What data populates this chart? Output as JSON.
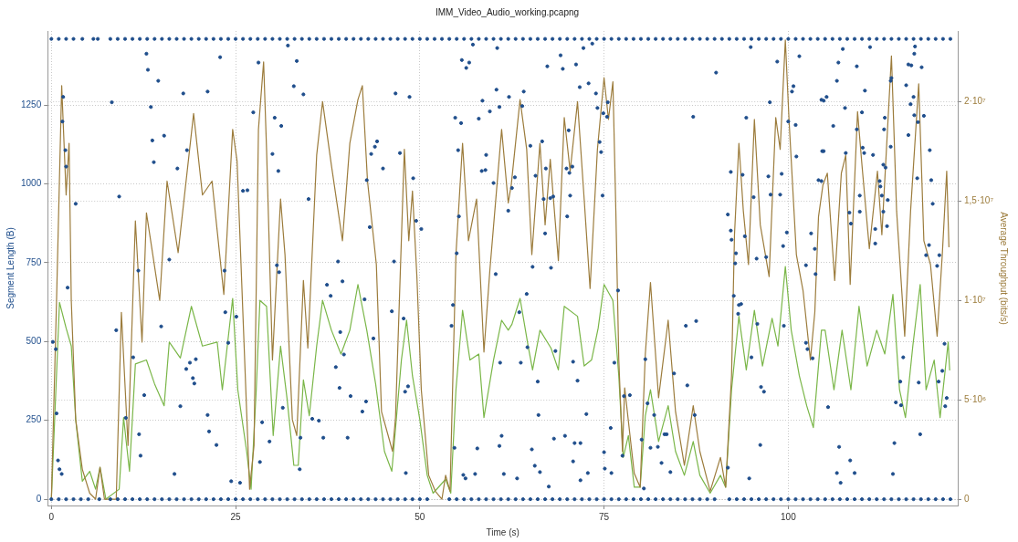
{
  "chart_data": {
    "type": "line",
    "title": "IMM_Video_Audio_working.pcapng",
    "xlabel": "Time (s)",
    "ylabel": "Segment Length (B)",
    "y2label": "Average Throughput (bits/s)",
    "xlim": [
      -0.5,
      123
    ],
    "xticks": [
      0,
      25,
      50,
      75,
      100
    ],
    "ylim": [
      -20,
      1485
    ],
    "yticks": [
      0,
      250,
      500,
      750,
      1000,
      1250
    ],
    "y2lim": [
      -320000,
      23550000
    ],
    "y2ticks": [
      0,
      {
        "value": 5000000,
        "label": "5·10⁶"
      },
      {
        "value": 10000000,
        "label": "1·10⁷"
      },
      {
        "value": 15000000,
        "label": "1,5·10⁷"
      },
      {
        "value": 20000000,
        "label": "2·10⁷"
      }
    ],
    "grid": true,
    "series": [
      {
        "type": "scatter",
        "marker": "circle",
        "color": "#1f4e8c",
        "x": [
          1.6,
          1.5,
          1.9,
          2.0,
          3.3,
          2.2,
          0.2,
          0.6,
          0.7,
          0.9,
          1.1,
          1.4,
          8.2,
          9.2,
          8.8,
          10.1,
          12.9,
          13.1,
          14.5,
          13.5,
          13.7,
          13.9,
          15.3,
          11.8,
          11.1,
          12.6,
          11.9,
          12.1,
          16.7,
          17.9,
          18.4,
          17.1,
          16.0,
          14.9,
          17.5,
          18.3,
          18.8,
          19.6,
          19.2,
          19.4,
          22.9,
          21.2,
          28.1,
          32.1,
          33.3,
          32.9,
          34.2,
          27.4,
          30.3,
          31.2,
          30.0,
          30.8,
          26.0,
          26.6,
          34.9,
          23.5,
          30.6,
          30.9,
          23.6,
          25.1,
          24.0,
          21.2,
          21.4,
          22.4,
          28.6,
          31.4,
          29.6,
          28.3,
          24.4,
          25.6,
          33.7,
          33.8,
          35.4,
          36.3,
          36.9,
          40.2,
          37.4,
          37.9,
          38.9,
          39.5,
          39.2,
          39.7,
          38.6,
          39.1,
          40.6,
          46.7,
          48.6,
          54.8,
          55.6,
          55.7,
          56.3,
          56.7,
          57.2,
          60.5,
          58.0,
          58.5,
          59.5,
          60.4,
          60.8,
          62.1,
          55.2,
          59.0,
          58.4,
          58.9,
          60.0,
          47.3,
          49.1,
          45.0,
          44.2,
          43.9,
          43.4,
          42.8,
          43.2,
          46.5,
          49.5,
          50.2,
          55.3,
          55.0,
          60.3,
          62.0,
          42.5,
          43.7,
          46.2,
          47.8,
          54.5,
          54.3,
          60.9,
          42.2,
          42.7,
          48.0,
          48.4,
          54.7,
          57.8,
          61.1,
          60.8,
          48.1,
          55.9,
          56.2,
          57.5,
          61.4,
          72.2,
          73.4,
          69.1,
          67.3,
          69.4,
          71.2,
          71.7,
          72.9,
          73.9,
          64.1,
          63.9,
          74.1,
          75.5,
          75.4,
          74.9,
          70.2,
          66.6,
          65.0,
          74.4,
          74.6,
          62.9,
          62.5,
          65.7,
          67.1,
          69.9,
          70.7,
          70.3,
          66.8,
          67.7,
          68.1,
          70.4,
          74.8,
          70.0,
          67.0,
          65.3,
          67.8,
          76.9,
          64.5,
          63.5,
          64.6,
          68.4,
          63.7,
          70.8,
          66.0,
          71.4,
          76.4,
          77.7,
          78.5,
          66.1,
          72.6,
          75.9,
          68.2,
          69.7,
          71.0,
          71.8,
          65.2,
          70.8,
          75.0,
          65.6,
          66.3,
          72.8,
          75.1,
          76.0,
          71.8,
          63.2,
          67.5,
          77.5,
          80.1,
          80.6,
          80.9,
          81.8,
          82.8,
          81.3,
          82.3,
          83.2,
          80.4,
          94.9,
          98.5,
          101.5,
          90.2,
          87.1,
          94.3,
          97.5,
          100.5,
          100.7,
          100.0,
          101.0,
          104.5,
          92.2,
          93.8,
          97.3,
          99.1,
          101.1,
          104.6,
          104.1,
          91.8,
          92.2,
          95.3,
          97.6,
          98.9,
          99.8,
          103.1,
          92.3,
          92.9,
          92.8,
          94.1,
          95.7,
          97.0,
          99.3,
          102.4,
          103.6,
          103.7,
          92.6,
          93.3,
          93.6,
          93.2,
          95.8,
          99.4,
          86.1,
          87.5,
          84.5,
          86.3,
          95.0,
          96.3,
          96.7,
          102.4,
          102.6,
          103.3,
          87.3,
          83.5,
          96.2,
          84.0,
          91.8,
          94.7,
          106.8,
          107.4,
          111.1,
          109.3,
          106.6,
          104.8,
          105.2,
          107.7,
          110.4,
          106.1,
          104.8,
          109.3,
          110.0,
          107.8,
          110.1,
          110.3,
          111.5,
          113.1,
          113.0,
          114.0,
          113.9,
          113.9,
          112.9,
          113.2,
          112.4,
          112.5,
          112.7,
          113.5,
          112.9,
          113.4,
          111.8,
          111.8,
          109.7,
          109.7,
          108.3,
          108.5,
          104.5,
          116.0,
          116.3,
          116.7,
          117.2,
          117.1,
          118.1,
          117.0,
          116.6,
          117.1,
          116.3,
          117.6,
          118.4,
          117.5,
          119.2,
          119.4,
          119.6,
          119.1,
          118.7,
          120.2,
          120.5,
          115.6,
          115.2,
          114.6,
          115.3,
          117.7,
          120.4,
          120.9,
          121.2,
          121.5,
          121.3,
          117.9,
          114.4,
          114.2,
          105.4,
          106.9,
          108.4,
          106.6,
          109.0,
          107.1
        ],
        "values": [
          1276,
          1198,
          1107,
          1055,
          937,
          671,
          499,
          476,
          272,
          123,
          95,
          80,
          1259,
          960,
          536,
          258,
          1413,
          1362,
          1327,
          1244,
          1138,
          1069,
          1153,
          725,
          450,
          330,
          206,
          138,
          80,
          1287,
          1107,
          1049,
          760,
          548,
          295,
          413,
          433,
          444,
          384,
          367,
          1402,
          1293,
          1385,
          1439,
          1390,
          1310,
          1284,
          1227,
          1210,
          1184,
          1095,
          1041,
          978,
          980,
          952,
          725,
          742,
          720,
          593,
          579,
          496,
          267,
          215,
          172,
          244,
          290,
          183,
          118,
          57,
          52,
          95,
          195,
          255,
          249,
          195,
          195,
          680,
          645,
          754,
          691,
          530,
          459,
          419,
          353,
          327,
          1287,
          1276,
          1210,
          1193,
          1393,
          1368,
          1385,
          1442,
          1431,
          1207,
          1264,
          1230,
          1299,
          1244,
          1276,
          1107,
          1092,
          1041,
          1044,
          1003,
          1098,
          1018,
          1049,
          1135,
          1118,
          1095,
          1012,
          863,
          754,
          883,
          857,
          897,
          780,
          714,
          915,
          634,
          510,
          596,
          573,
          616,
          550,
          433,
          278,
          310,
          341,
          358,
          163,
          161,
          201,
          169,
          83,
          77,
          66,
          80,
          80,
          1431,
          1445,
          1408,
          1373,
          1365,
          1379,
          1307,
          1319,
          1287,
          1293,
          1247,
          1241,
          1259,
          1213,
          1224,
          1170,
          1135,
          1121,
          1133,
          1101,
          1021,
          987,
          1026,
          1049,
          1049,
          1055,
          1035,
          952,
          955,
          960,
          963,
          963,
          897,
          843,
          737,
          734,
          662,
          651,
          593,
          482,
          470,
          433,
          436,
          373,
          376,
          433,
          327,
          330,
          267,
          270,
          226,
          192,
          201,
          178,
          178,
          158,
          120,
          149,
          106,
          86,
          83,
          97,
          83,
          60,
          66,
          40,
          138,
          189,
          444,
          304,
          267,
          115,
          163,
          166,
          206,
          34,
          1434,
          1388,
          1405,
          1353,
          1213,
          1210,
          1259,
          1293,
          1310,
          1198,
          1187,
          1267,
          1038,
          1029,
          1024,
          1032,
          1087,
          1104,
          1012,
          903,
          852,
          958,
          966,
          966,
          846,
          843,
          823,
          780,
          748,
          834,
          763,
          768,
          803,
          742,
          794,
          714,
          645,
          616,
          619,
          588,
          556,
          550,
          550,
          565,
          399,
          361,
          450,
          356,
          341,
          496,
          476,
          447,
          267,
          206,
          172,
          86,
          100,
          66,
          1385,
          1428,
          1434,
          1373,
          1327,
          1264,
          1276,
          1241,
          1296,
          1184,
          1104,
          1173,
          1227,
          1098,
          1115,
          1098,
          1092,
          1210,
          1173,
          1336,
          1327,
          1118,
          1061,
          1052,
          1009,
          992,
          963,
          949,
          912,
          866,
          857,
          811,
          963,
          912,
          909,
          874,
          1009,
          1313,
          1379,
          1376,
          1436,
          1413,
          1370,
          1276,
          1253,
          1218,
          1155,
          1196,
          1216,
          1018,
          1107,
          1012,
          937,
          806,
          774,
          740,
          774,
          450,
          373,
          307,
          298,
          370,
          373,
          407,
          493,
          321,
          295,
          206,
          178,
          80,
          292,
          166,
          123,
          83,
          83,
          52
        ]
      },
      {
        "type": "scatter",
        "marker": "circle",
        "color": "#1f4e8c",
        "x": [
          0,
          1,
          2,
          3,
          4.2,
          5.7,
          6.3,
          8,
          9,
          10,
          11,
          12,
          13,
          14,
          15,
          16,
          17,
          18,
          19,
          20,
          21,
          22,
          23,
          24,
          25,
          26,
          27,
          28,
          29,
          30,
          31,
          32,
          33,
          34,
          35,
          36,
          37,
          38,
          39,
          40,
          41,
          42,
          43,
          44,
          45,
          46,
          47,
          48,
          49,
          50,
          51,
          52,
          53,
          54,
          55,
          56,
          57,
          58,
          59,
          60,
          61,
          62,
          63,
          64,
          65,
          66,
          67,
          68,
          69,
          70,
          71,
          72,
          73,
          74,
          75,
          76,
          77,
          78,
          79,
          80,
          81,
          82,
          83,
          84,
          85,
          86,
          87,
          88,
          89,
          90,
          91,
          92,
          93,
          94,
          95,
          96,
          97,
          98,
          99,
          100,
          101,
          102,
          103,
          104,
          105,
          106,
          107,
          108,
          109,
          110,
          111,
          112,
          113,
          114,
          115,
          116,
          117,
          118,
          119,
          120,
          121,
          122
        ],
        "values": [
          1460,
          1460,
          1460,
          1460,
          1460,
          1460,
          1460,
          1460,
          1460,
          1460,
          1460,
          1460,
          1460,
          1460,
          1460,
          1460,
          1460,
          1460,
          1460,
          1460,
          1460,
          1460,
          1460,
          1460,
          1460,
          1460,
          1460,
          1460,
          1460,
          1460,
          1460,
          1460,
          1460,
          1460,
          1460,
          1460,
          1460,
          1460,
          1460,
          1460,
          1460,
          1460,
          1460,
          1460,
          1460,
          1460,
          1460,
          1460,
          1460,
          1460,
          1460,
          1460,
          1460,
          1460,
          1460,
          1460,
          1460,
          1460,
          1460,
          1460,
          1460,
          1460,
          1460,
          1460,
          1460,
          1460,
          1460,
          1460,
          1460,
          1460,
          1460,
          1460,
          1460,
          1460,
          1460,
          1460,
          1460,
          1460,
          1460,
          1460,
          1460,
          1460,
          1460,
          1460,
          1460,
          1460,
          1460,
          1460,
          1460,
          1460,
          1460,
          1460,
          1460,
          1460,
          1460,
          1460,
          1460,
          1460,
          1460,
          1460,
          1460,
          1460,
          1460,
          1460,
          1460,
          1460,
          1460,
          1460,
          1460,
          1460,
          1460,
          1460,
          1460,
          1460,
          1460,
          1460,
          1460,
          1460,
          1460,
          1460,
          1460,
          1460
        ]
      },
      {
        "type": "scatter",
        "marker": "circle",
        "color": "#1f4e8c",
        "x": [
          0,
          1,
          2,
          3,
          4,
          5,
          6.5,
          8,
          9,
          10,
          11,
          12,
          13,
          14,
          15,
          16,
          17,
          18,
          19,
          20,
          21,
          22,
          23,
          24,
          25,
          26,
          27,
          28,
          29,
          30,
          31,
          32,
          33,
          34,
          35,
          36,
          37,
          38,
          39,
          40,
          41,
          42,
          43,
          44,
          45,
          46,
          47,
          48,
          49,
          50,
          51,
          54,
          55,
          56,
          57,
          58,
          59,
          60,
          61,
          62,
          63,
          64,
          65,
          66,
          67,
          68,
          69,
          70,
          71,
          72,
          73,
          74,
          75,
          76,
          77,
          78,
          79,
          80,
          81,
          82,
          83,
          84,
          85,
          86,
          87,
          88,
          89,
          90,
          92,
          93,
          94,
          95,
          96,
          97,
          98,
          99,
          100,
          101,
          102,
          103,
          104,
          105,
          106,
          107,
          108,
          109,
          110,
          111,
          112,
          113,
          114,
          115,
          116,
          117,
          118,
          119,
          120,
          121,
          122
        ],
        "values": [
          0,
          0,
          0,
          0,
          0,
          0,
          0,
          0,
          0,
          0,
          0,
          0,
          0,
          0,
          0,
          0,
          0,
          0,
          0,
          0,
          0,
          0,
          0,
          0,
          0,
          0,
          0,
          0,
          0,
          0,
          0,
          0,
          0,
          0,
          0,
          0,
          0,
          0,
          0,
          0,
          0,
          0,
          0,
          0,
          0,
          0,
          0,
          0,
          0,
          0,
          0,
          0,
          0,
          0,
          0,
          0,
          0,
          0,
          0,
          0,
          0,
          0,
          0,
          0,
          0,
          0,
          0,
          0,
          0,
          0,
          0,
          0,
          0,
          0,
          0,
          0,
          0,
          0,
          0,
          0,
          0,
          0,
          0,
          0,
          0,
          0,
          0,
          0,
          0,
          0,
          0,
          0,
          0,
          0,
          0,
          0,
          0,
          0,
          0,
          0,
          0,
          0,
          0,
          0,
          0,
          0,
          0,
          0,
          0,
          0,
          0,
          0,
          0,
          0,
          0,
          0,
          0,
          0,
          0
        ]
      },
      {
        "type": "line",
        "axis": "y2",
        "color": "#9c7c3c",
        "x": [
          0,
          0.7,
          1.4,
          2.0,
          2.4,
          2.7,
          3.3,
          4.2,
          5.2,
          6.0,
          6.6,
          7.2,
          7.8,
          8.8,
          9.5,
          10.4,
          11.4,
          12.3,
          12.9,
          14.7,
          15.7,
          17.2,
          19.3,
          20.5,
          21.8,
          23.4,
          24.6,
          25.2,
          26.9,
          27.5,
          28.1,
          28.8,
          29.2,
          30.0,
          31.1,
          31.7,
          32.7,
          33.3,
          34.2,
          34.8,
          36.0,
          36.8,
          38.0,
          39.5,
          40.5,
          41.6,
          42.2,
          42.9,
          44.1,
          44.8,
          46.3,
          46.7,
          47.9,
          48.5,
          49.0,
          49.6,
          50.2,
          51.2,
          52.1,
          53.0,
          53.5,
          54.1,
          54.9,
          55.8,
          56.6,
          57.7,
          58.7,
          59.5,
          61.1,
          62.0,
          62.4,
          63.6,
          64.5,
          65.2,
          66.3,
          67.0,
          67.7,
          68.8,
          69.6,
          70.4,
          71.4,
          72.3,
          73.1,
          74.1,
          75.0,
          75.6,
          76.2,
          76.6,
          77.0,
          77.5,
          77.8,
          78.7,
          79.1,
          79.9,
          80.6,
          81.3,
          82.4,
          83.7,
          84.7,
          85.9,
          87.1,
          88.0,
          89.4,
          90.8,
          91.5,
          92.3,
          92.7,
          93.3,
          93.9,
          94.6,
          95.4,
          96.2,
          97.4,
          98.3,
          98.9,
          99.6,
          100.1,
          101.1,
          102.0,
          103.0,
          103.6,
          104.1,
          104.7,
          105.3,
          106.3,
          107.2,
          107.8,
          108.4,
          109.4,
          110.0,
          111.0,
          112.1,
          112.7,
          114.0,
          114.7,
          115.8,
          116.6,
          117.7,
          118.4,
          119.3,
          120.2,
          120.9,
          121.5,
          121.8
        ],
        "values": [
          0,
          10000000.0,
          20800000.0,
          15300000.0,
          17900000.0,
          10000000.0,
          4000000.0,
          1500000.0,
          300000.0,
          0,
          1600000.0,
          0,
          0,
          0,
          9400000.0,
          2700000.0,
          14000000.0,
          7900000.0,
          14400000.0,
          10000000.0,
          16000000.0,
          12400000.0,
          19400000.0,
          15300000.0,
          16000000.0,
          10300000.0,
          18600000.0,
          17000000.0,
          500000.0,
          2700000.0,
          18600000.0,
          22000000.0,
          17600000.0,
          7000000.0,
          15100000.0,
          12300000.0,
          4000000.0,
          3200000.0,
          11000000.0,
          7600000.0,
          17300000.0,
          20000000.0,
          16800000.0,
          13000000.0,
          17900000.0,
          20100000.0,
          20800000.0,
          16000000.0,
          11800000.0,
          4400000.0,
          2400000.0,
          4100000.0,
          17600000.0,
          13000000.0,
          15500000.0,
          11200000.0,
          5500000.0,
          1200000.0,
          400000.0,
          0,
          1200000.0,
          400000.0,
          12300000.0,
          17900000.0,
          13000000.0,
          15100000.0,
          7400000.0,
          11500000.0,
          18600000.0,
          14900000.0,
          15800000.0,
          20100000.0,
          17600000.0,
          12300000.0,
          17900000.0,
          13800000.0,
          17100000.0,
          12000000.0,
          19200000.0,
          16500000.0,
          20000000.0,
          15100000.0,
          10600000.0,
          17600000.0,
          21200000.0,
          19100000.0,
          21000000.0,
          14500000.0,
          7000000.0,
          2400000.0,
          5600000.0,
          2600000.0,
          1300000.0,
          600000.0,
          7300000.0,
          10900000.0,
          5100000.0,
          9000000.0,
          4400000.0,
          1700000.0,
          4700000.0,
          2400000.0,
          400000.0,
          2100000.0,
          600000.0,
          6200000.0,
          13300000.0,
          17900000.0,
          14500000.0,
          11800000.0,
          19100000.0,
          13800000.0,
          11200000.0,
          19200000.0,
          17600000.0,
          23100000.0,
          19100000.0,
          12300000.0,
          10500000.0,
          7000000.0,
          9400000.0,
          14200000.0,
          15800000.0,
          16400000.0,
          11000000.0,
          16400000.0,
          17300000.0,
          10800000.0,
          19500000.0,
          16800000.0,
          12600000.0,
          16500000.0,
          13300000.0,
          22300000.0,
          14500000.0,
          8200000.0,
          14500000.0,
          20900000.0,
          13000000.0,
          11800000.0,
          8200000.0,
          12300000.0,
          16500000.0,
          12700000.0
        ]
      },
      {
        "type": "line",
        "axis": "y2",
        "color": "#7ab648",
        "x": [
          0,
          1.1,
          2.0,
          2.7,
          3.3,
          4.2,
          5.2,
          6.0,
          6.6,
          7.4,
          9.2,
          9.8,
          10.6,
          11.4,
          12.9,
          14.0,
          15.3,
          16.0,
          17.5,
          19.0,
          20.5,
          22.5,
          23.2,
          24.6,
          25.3,
          26.5,
          27.1,
          27.8,
          28.3,
          29.2,
          30.1,
          31.1,
          32.0,
          32.9,
          33.5,
          34.2,
          35.0,
          36.0,
          36.8,
          38.0,
          39.3,
          40.5,
          41.6,
          42.8,
          44.0,
          45.2,
          46.2,
          47.5,
          48.2,
          49.0,
          50.0,
          51.0,
          51.8,
          53.5,
          54.2,
          54.9,
          55.8,
          56.8,
          58.0,
          58.7,
          60.0,
          61.1,
          62.0,
          62.5,
          63.6,
          64.7,
          65.3,
          66.3,
          67.8,
          68.8,
          69.6,
          71.4,
          72.3,
          73.3,
          74.2,
          75.0,
          76.2,
          77.0,
          77.6,
          78.3,
          79.1,
          79.9,
          80.6,
          81.3,
          82.4,
          83.7,
          84.7,
          85.9,
          87.1,
          88.0,
          89.4,
          90.8,
          91.5,
          92.3,
          93.3,
          94.3,
          95.4,
          96.5,
          97.8,
          98.6,
          99.6,
          100.4,
          101.5,
          102.5,
          103.4,
          104.5,
          105.0,
          106.2,
          107.3,
          108.5,
          109.6,
          110.7,
          112.0,
          113.1,
          114.2,
          115.1,
          115.9,
          116.9,
          117.9,
          118.7,
          119.8,
          120.6,
          121.7,
          121.9
        ],
        "values": [
          0,
          9900000.0,
          8600000.0,
          7700000.0,
          4000000.0,
          900000.0,
          1400000.0,
          500000.0,
          1600000.0,
          0,
          500000.0,
          4100000.0,
          1400000.0,
          6800000.0,
          7000000.0,
          5800000.0,
          4700000.0,
          7900000.0,
          7100000.0,
          9700000.0,
          7700000.0,
          7900000.0,
          5500000.0,
          10100000.0,
          5500000.0,
          2400000.0,
          500000.0,
          5500000.0,
          10000000.0,
          9700000.0,
          3200000.0,
          7700000.0,
          5000000.0,
          1700000.0,
          1700000.0,
          6000000.0,
          4200000.0,
          7700000.0,
          10000000.0,
          8500000.0,
          7300000.0,
          8500000.0,
          10800000.0,
          8500000.0,
          5800000.0,
          2400000.0,
          1400000.0,
          7000000.0,
          9000000.0,
          6200000.0,
          4000000.0,
          1200000.0,
          300000.0,
          1000000.0,
          300000.0,
          5500000.0,
          9500000.0,
          7000000.0,
          7300000.0,
          4100000.0,
          7000000.0,
          9000000.0,
          8500000.0,
          8800000.0,
          10100000.0,
          7700000.0,
          6500000.0,
          8500000.0,
          7600000.0,
          6500000.0,
          9700000.0,
          9200000.0,
          6700000.0,
          7000000.0,
          8600000.0,
          10800000.0,
          10000000.0,
          6200000.0,
          2100000.0,
          3200000.0,
          600000.0,
          600000.0,
          4200000.0,
          5500000.0,
          2900000.0,
          4700000.0,
          2400000.0,
          1200000.0,
          2900000.0,
          1200000.0,
          300000.0,
          1200000.0,
          600000.0,
          5500000.0,
          9200000.0,
          6500000.0,
          9500000.0,
          6700000.0,
          9100000.0,
          7700000.0,
          11700000.0,
          8500000.0,
          6200000.0,
          4700000.0,
          3600000.0,
          8500000.0,
          8500000.0,
          5500000.0,
          8500000.0,
          5500000.0,
          9700000.0,
          6700000.0,
          8500000.0,
          7300000.0,
          10300000.0,
          5500000.0,
          4100000.0,
          7700000.0,
          10800000.0,
          5500000.0,
          7000000.0,
          4100000.0,
          7900000.0,
          6500000.0
        ]
      }
    ]
  }
}
